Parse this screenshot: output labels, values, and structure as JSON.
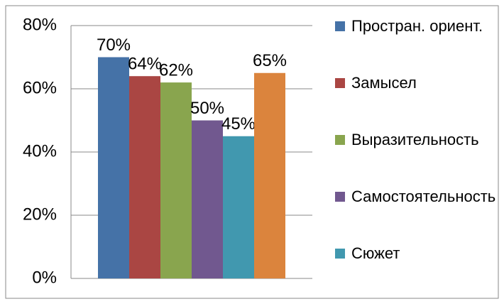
{
  "chart_data": {
    "type": "bar",
    "categories": [
      null
    ],
    "series": [
      {
        "name": "Простран. ориент.",
        "color": "#4572a7",
        "values": [
          70
        ],
        "value_labels": [
          "70%"
        ]
      },
      {
        "name": "Замысел",
        "color": "#aa4643",
        "values": [
          64
        ],
        "value_labels": [
          "64%"
        ]
      },
      {
        "name": "Выразительность",
        "color": "#89a54e",
        "values": [
          62
        ],
        "value_labels": [
          "62%"
        ]
      },
      {
        "name": "Самостоятельность",
        "color": "#71588f",
        "values": [
          50
        ],
        "value_labels": [
          "50%"
        ]
      },
      {
        "name": "Сюжет",
        "color": "#4198af",
        "values": [
          45
        ],
        "value_labels": [
          "45%"
        ]
      },
      {
        "color": "#db843d",
        "values": [
          65
        ],
        "value_labels": [
          "65%"
        ]
      }
    ],
    "ylim": [
      0,
      80
    ],
    "yticks": [
      {
        "value": 0,
        "label": "0%"
      },
      {
        "value": 20,
        "label": "20%"
      },
      {
        "value": 40,
        "label": "40%"
      },
      {
        "value": 60,
        "label": "60%"
      },
      {
        "value": 80,
        "label": "80%"
      }
    ],
    "grid": true,
    "legend": "right"
  }
}
